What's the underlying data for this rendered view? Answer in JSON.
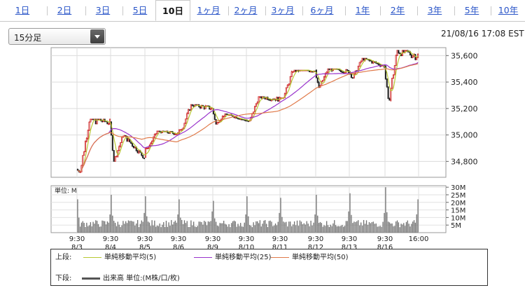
{
  "tabs": [
    {
      "label": "1日",
      "active": false
    },
    {
      "label": "2日",
      "active": false
    },
    {
      "label": "3日",
      "active": false
    },
    {
      "label": "5日",
      "active": false
    },
    {
      "label": "10日",
      "active": true
    },
    {
      "label": "1ヶ月",
      "active": false
    },
    {
      "label": "2ヶ月",
      "active": false
    },
    {
      "label": "3ヶ月",
      "active": false
    },
    {
      "label": "6ヶ月",
      "active": false
    },
    {
      "label": "1年",
      "active": false
    },
    {
      "label": "2年",
      "active": false
    },
    {
      "label": "3年",
      "active": false
    },
    {
      "label": "5年",
      "active": false
    },
    {
      "label": "10年",
      "active": false
    }
  ],
  "interval_select": {
    "value": "15分足"
  },
  "timestamp": "21/08/16 17:08 EST",
  "colors": {
    "candle_up": "#cc2222",
    "candle_down": "#222222",
    "ma5": "#b8c832",
    "ma25": "#9933cc",
    "ma50": "#e07a4a",
    "volume": "#707070"
  },
  "legend": {
    "upper_label": "上段:",
    "lower_label": "下段:",
    "items": [
      {
        "label": "単純移動平均(5)",
        "color": "#b8c832"
      },
      {
        "label": "単純移動平均(25)",
        "color": "#9933cc"
      },
      {
        "label": "単純移動平均(50)",
        "color": "#e07a4a"
      }
    ],
    "volume_label": "出来高 単位:(M株/口/枚)"
  },
  "chart_data": [
    {
      "type": "candlestick",
      "series": [
        {
          "name": "単純移動平均(5)",
          "color": "#b8c832"
        },
        {
          "name": "単純移動平均(25)",
          "color": "#9933cc"
        },
        {
          "name": "単純移動平均(50)",
          "color": "#e07a4a"
        }
      ],
      "x_ticks": [
        {
          "time": "9:30",
          "date": "8/3"
        },
        {
          "time": "9:30",
          "date": "8/4"
        },
        {
          "time": "9:30",
          "date": "8/5"
        },
        {
          "time": "9:30",
          "date": "8/6"
        },
        {
          "time": "9:30",
          "date": "8/9"
        },
        {
          "time": "9:30",
          "date": "8/10"
        },
        {
          "time": "9:30",
          "date": "8/11"
        },
        {
          "time": "9:30",
          "date": "8/12"
        },
        {
          "time": "9:30",
          "date": "8/13"
        },
        {
          "time": "9:30",
          "date": "8/16"
        },
        {
          "time": "16:00",
          "date": ""
        }
      ],
      "y_ticks": [
        34800,
        35000,
        35200,
        35400,
        35600
      ],
      "y_tick_labels": [
        "34,800",
        "35,000",
        "35,200",
        "35,400",
        "35,600"
      ],
      "ylim": [
        34680,
        35660
      ],
      "grid": true,
      "day_closes": [
        35100,
        34830,
        35010,
        35200,
        35110,
        35270,
        35490,
        35480,
        35520,
        35600
      ],
      "day_lows": [
        34720,
        34800,
        34900,
        35040,
        35080,
        35100,
        35280,
        35350,
        35430,
        35240
      ],
      "day_highs": [
        35120,
        35000,
        35030,
        35230,
        35160,
        35290,
        35490,
        35500,
        35580,
        35640
      ]
    },
    {
      "type": "bar",
      "title": "単位: M",
      "y_ticks": [
        5,
        10,
        15,
        20,
        25,
        30
      ],
      "y_tick_labels": [
        "5M",
        "10M",
        "15M",
        "20M",
        "25M",
        "30M"
      ],
      "ylim": [
        0,
        31
      ],
      "day_open_volumes": [
        22,
        25,
        24,
        22,
        21,
        24,
        23,
        25,
        26,
        30
      ],
      "day_close_volumes": [
        12,
        13,
        12,
        14,
        12,
        13,
        12,
        14,
        13,
        22
      ],
      "typical_volume": 6
    }
  ]
}
